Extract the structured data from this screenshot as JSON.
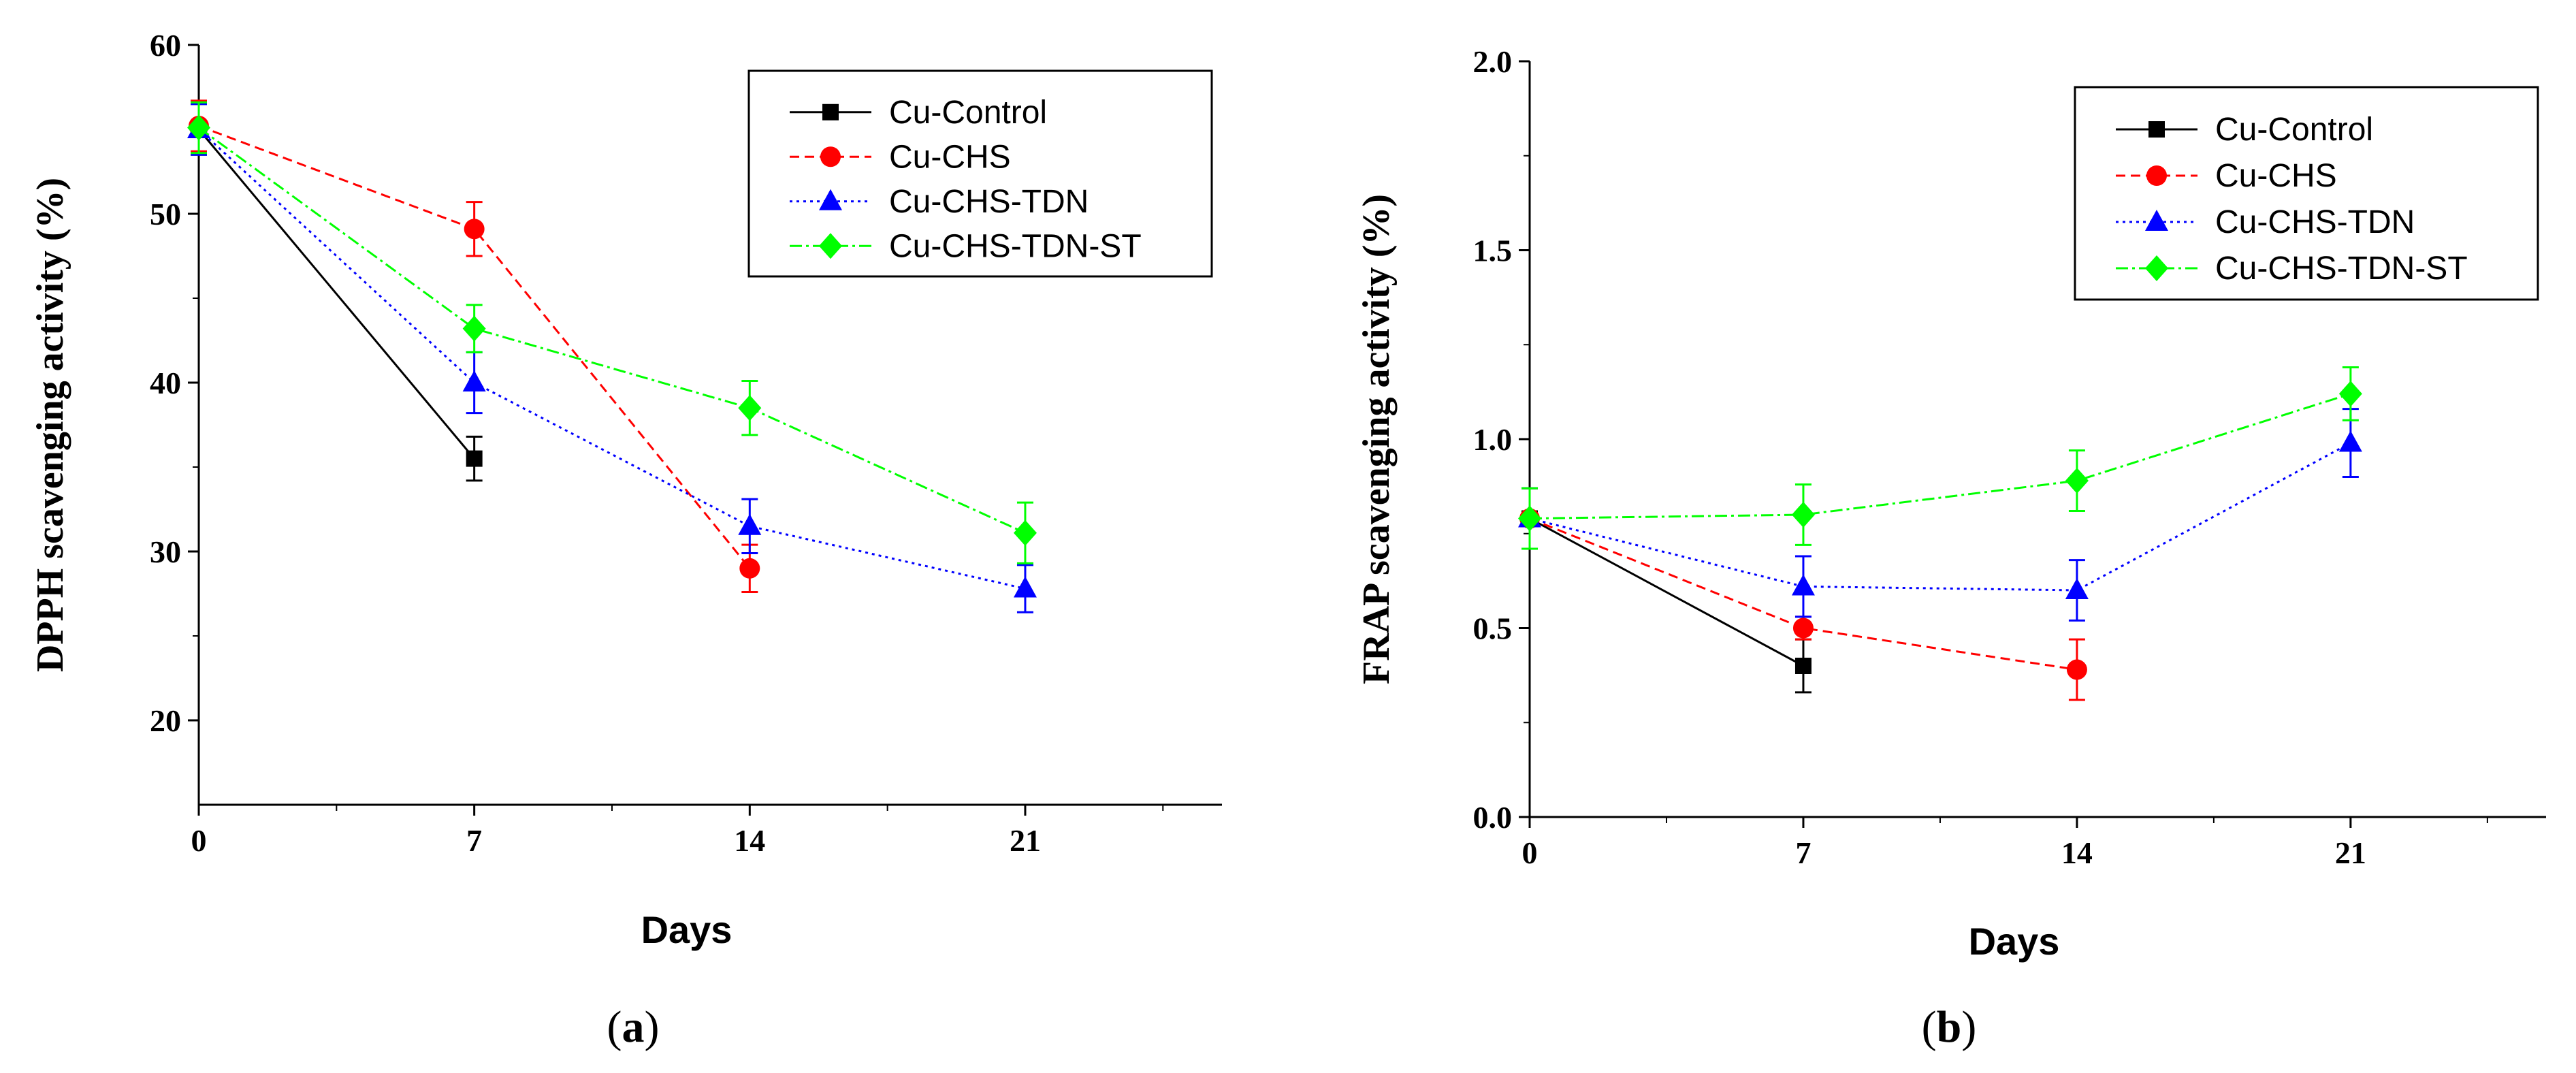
{
  "chart_data": [
    {
      "type": "line",
      "panel_label": "(a)",
      "panel_letter": "a",
      "title": "",
      "xlabel": "Days",
      "ylabel": "DPPH scavenging activity (%)",
      "xlim": [
        0,
        26
      ],
      "ylim": [
        15,
        60
      ],
      "x_ticks": [
        0,
        7,
        14,
        21
      ],
      "y_ticks": [
        20,
        30,
        40,
        50,
        60
      ],
      "series": [
        {
          "name": "Cu-Control",
          "color": "#000000",
          "marker": "square",
          "dash": "solid",
          "x": [
            0,
            7
          ],
          "values": [
            55.0,
            35.5
          ],
          "errors": [
            1.5,
            1.3
          ]
        },
        {
          "name": "Cu-CHS",
          "color": "#ff0000",
          "marker": "circle",
          "dash": "dashed",
          "x": [
            0,
            7,
            14
          ],
          "values": [
            55.2,
            49.1,
            29.0
          ],
          "errors": [
            1.5,
            1.6,
            1.4
          ]
        },
        {
          "name": "Cu-CHS-TDN",
          "color": "#0000ff",
          "marker": "triangle",
          "dash": "dotted",
          "x": [
            0,
            7,
            14,
            21
          ],
          "values": [
            55.0,
            40.0,
            31.5,
            27.8
          ],
          "errors": [
            1.5,
            1.8,
            1.6,
            1.4
          ]
        },
        {
          "name": "Cu-CHS-TDN-ST",
          "color": "#00ff00",
          "marker": "diamond",
          "dash": "dashdot",
          "x": [
            0,
            7,
            14,
            21
          ],
          "values": [
            55.1,
            43.2,
            38.5,
            31.1
          ],
          "errors": [
            1.5,
            1.4,
            1.6,
            1.8
          ]
        }
      ]
    },
    {
      "type": "line",
      "panel_label": "(b)",
      "panel_letter": "b",
      "title": "",
      "xlabel": "Days",
      "ylabel": "FRAP scavenging activity (%)",
      "xlim": [
        0,
        26
      ],
      "ylim": [
        0.0,
        2.0
      ],
      "x_ticks": [
        0,
        7,
        14,
        21
      ],
      "y_ticks": [
        0.0,
        0.5,
        1.0,
        1.5,
        2.0
      ],
      "y_tick_labels": [
        "0.0",
        "0.5",
        "1.0",
        "1.5",
        "2.0"
      ],
      "series": [
        {
          "name": "Cu-Control",
          "color": "#000000",
          "marker": "square",
          "dash": "solid",
          "x": [
            0,
            7
          ],
          "values": [
            0.79,
            0.4
          ],
          "errors": [
            0.08,
            0.07
          ]
        },
        {
          "name": "Cu-CHS",
          "color": "#ff0000",
          "marker": "circle",
          "dash": "dashed",
          "x": [
            0,
            7,
            14
          ],
          "values": [
            0.79,
            0.5,
            0.39
          ],
          "errors": [
            0.08,
            0.03,
            0.08
          ]
        },
        {
          "name": "Cu-CHS-TDN",
          "color": "#0000ff",
          "marker": "triangle",
          "dash": "dotted",
          "x": [
            0,
            7,
            14,
            21
          ],
          "values": [
            0.79,
            0.61,
            0.6,
            0.99
          ],
          "errors": [
            0.08,
            0.08,
            0.08,
            0.09
          ]
        },
        {
          "name": "Cu-CHS-TDN-ST",
          "color": "#00ff00",
          "marker": "diamond",
          "dash": "dashdot",
          "x": [
            0,
            7,
            14,
            21
          ],
          "values": [
            0.79,
            0.8,
            0.89,
            1.12
          ],
          "errors": [
            0.08,
            0.08,
            0.08,
            0.07
          ]
        }
      ]
    }
  ]
}
